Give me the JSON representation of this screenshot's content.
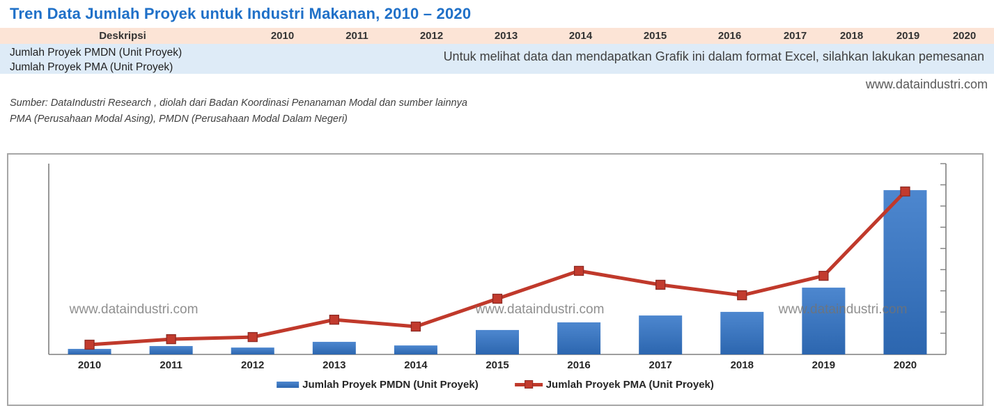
{
  "page": {
    "title": "Tren Data Jumlah Proyek untuk Industri Makanan, 2010 – 2020",
    "website": "www.dataindustri.com",
    "watermark": "www.dataindustri.com"
  },
  "table": {
    "header": {
      "description_label": "Deskripsi",
      "years": [
        "2010",
        "2011",
        "2012",
        "2013",
        "2014",
        "2015",
        "2016",
        "2017",
        "2018",
        "2019",
        "2020"
      ]
    },
    "rows": [
      "Jumlah Proyek PMDN (Unit Proyek)",
      "Jumlah Proyek PMA (Unit Proyek)"
    ],
    "overlay_note": "Untuk melihat data dan mendapatkan Grafik ini dalam format Excel, silahkan lakukan pemesanan"
  },
  "source": {
    "line1": "Sumber: DataIndustri Research , diolah dari Badan Koordinasi Penanaman Modal dan sumber lainnya",
    "line2": "PMA (Perusahaan Modal Asing), PMDN (Perusahaan Modal Dalam Negeri)"
  },
  "chart_data": {
    "type": "bar",
    "subtype": "bar + line combo",
    "title": "",
    "xlabel": "",
    "ylabel": "",
    "categories": [
      "2010",
      "2011",
      "2012",
      "2013",
      "2014",
      "2015",
      "2016",
      "2017",
      "2018",
      "2019",
      "2020"
    ],
    "series": [
      {
        "name": "Jumlah Proyek PMDN (Unit Proyek)",
        "type": "bar",
        "color": "#2E6DB4",
        "values": [
          2.9,
          4.4,
          3.6,
          6.6,
          4.7,
          12.8,
          16.8,
          20.4,
          22.3,
          35.0,
          86.1
        ]
      },
      {
        "name": "Jumlah Proyek PMA (Unit Proyek)",
        "type": "line",
        "color": "#C0392B",
        "marker": "square",
        "values": [
          5.1,
          8.0,
          9.1,
          18.2,
          14.6,
          29.2,
          43.8,
          36.5,
          31.0,
          41.2,
          85.4
        ]
      }
    ],
    "value_note": "Numeric y-axis labels are hidden in the source chart (data available by order); values are estimated relative heights in % of plot height.",
    "ylim": [
      0,
      100
    ],
    "y_axis_tick_count": 9,
    "y_axis_side": "right",
    "grid": false,
    "legend_position": "bottom"
  },
  "colors": {
    "title_blue": "#1F70C8",
    "header_peach": "#FCE4D6",
    "band_blue": "#DEEBF7",
    "bar_blue": "#2E6DB4",
    "line_red": "#C0392B",
    "axis_gray": "#7F7F7F",
    "border_gray": "#A6A6A6"
  }
}
